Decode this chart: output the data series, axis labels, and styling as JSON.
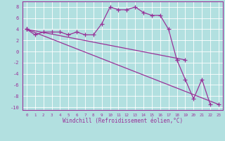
{
  "xlabel": "Windchill (Refroidissement éolien,°C)",
  "background_color": "#b2e0e0",
  "grid_color": "#ffffff",
  "line_color": "#993399",
  "xlim": [
    -0.5,
    23.5
  ],
  "ylim": [
    -10.5,
    9.0
  ],
  "yticks": [
    -10,
    -8,
    -6,
    -4,
    -2,
    0,
    2,
    4,
    6,
    8
  ],
  "xticks": [
    0,
    1,
    2,
    3,
    4,
    5,
    6,
    7,
    8,
    9,
    10,
    11,
    12,
    13,
    14,
    15,
    16,
    17,
    18,
    19,
    20,
    21,
    22,
    23
  ],
  "series1_x": [
    0,
    1,
    2,
    3,
    4,
    5,
    6,
    7,
    8,
    9,
    10,
    11,
    12,
    13,
    14,
    15,
    16,
    17,
    18
  ],
  "series1_y": [
    4,
    3,
    3.5,
    3.5,
    3.5,
    3,
    3.5,
    3,
    3,
    5,
    8,
    7.5,
    7.5,
    8,
    7,
    6.5,
    6.5,
    4,
    -1.5
  ],
  "series2_x": [
    0,
    19
  ],
  "series2_y": [
    4,
    -1.5
  ],
  "series3_x": [
    0,
    23
  ],
  "series3_y": [
    4,
    -9.5
  ],
  "series4_x": [
    18,
    19,
    20,
    21,
    22
  ],
  "series4_y": [
    -1.5,
    -5,
    -8.5,
    -5,
    -9.5
  ]
}
